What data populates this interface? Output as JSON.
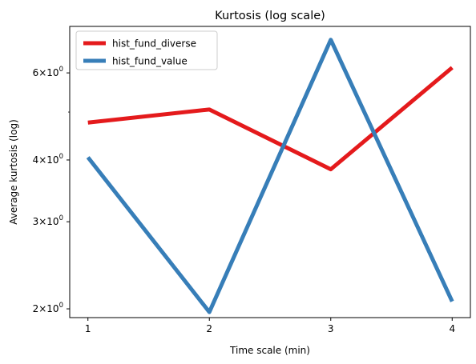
{
  "chart_data": {
    "type": "line",
    "title": "Kurtosis (log scale)",
    "xlabel": "Time scale (min)",
    "ylabel": "Average kurtosis (log)",
    "y_scale": "log",
    "x": [
      1,
      2,
      3,
      4
    ],
    "xticks": [
      "1",
      "2",
      "3",
      "4"
    ],
    "ylim": [
      1.92,
      7.45
    ],
    "yticks": [
      {
        "value": 2,
        "mantissa": "2",
        "exponent": "0"
      },
      {
        "value": 3,
        "mantissa": "3",
        "exponent": "0"
      },
      {
        "value": 4,
        "mantissa": "4",
        "exponent": "0"
      },
      {
        "value": 6,
        "mantissa": "6",
        "exponent": "0"
      }
    ],
    "minor_yticks": [
      5
    ],
    "grid": false,
    "legend_position": "top-left",
    "series": [
      {
        "name": "hist_fund_diverse",
        "color": "#e41a1c",
        "values": [
          4.76,
          5.06,
          3.83,
          6.15
        ]
      },
      {
        "name": "hist_fund_value",
        "color": "#377eb8",
        "values": [
          4.05,
          1.97,
          7.0,
          2.07
        ]
      }
    ]
  }
}
